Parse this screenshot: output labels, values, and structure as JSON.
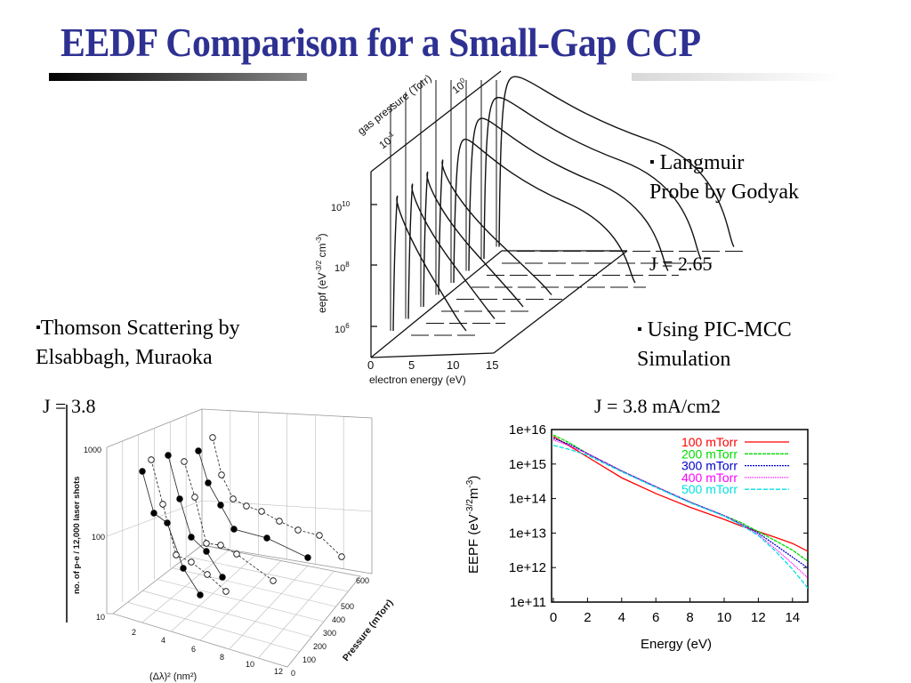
{
  "slide": {
    "title": "EEDF Comparison for a Small-Gap CCP",
    "langmuir": {
      "bullet": "▪",
      "line1": "Langmuir",
      "line2": "Probe by Godyak",
      "j": "J = 2.65"
    },
    "pic": {
      "bullet": "▪",
      "line1": "Using PIC-MCC",
      "line2": "Simulation",
      "j": "J = 3.8 mA/cm2"
    },
    "thomson": {
      "bullet": "▪",
      "line1": "Thomson Scattering by",
      "line2": "Elsabbagh, Muraoka",
      "j": "J = 3.8"
    },
    "colors": {
      "title": "#2e3192"
    }
  },
  "chart_data": [
    {
      "type": "line",
      "xlabel": "electron energy (eV)",
      "ylabel": "eepf (eV-3/2 cm-3)",
      "zlabel": "gas pressure (Torr)",
      "xticks": [
        "0",
        "5",
        "10",
        "15"
      ],
      "yticks": [
        "10^10",
        "10^8",
        "10^6"
      ],
      "zticks": [
        "10^-1",
        "10^0"
      ],
      "ylabel_parts": {
        "base": "eepf (eV",
        "exp1": "-3/2",
        "mid": " cm",
        "exp2": "-3",
        "end": ")"
      },
      "ytick_parts": [
        {
          "base": "10",
          "exp": "10"
        },
        {
          "base": "10",
          "exp": "8"
        },
        {
          "base": "10",
          "exp": "6"
        }
      ],
      "ztick_parts": [
        {
          "base": "10",
          "exp": "-1"
        },
        {
          "base": "10",
          "exp": "0"
        }
      ]
    },
    {
      "type": "scatter",
      "xlabel": "(Δλ)² (nm²)",
      "ylabel": "no. of p-e / 12,000 laser shots",
      "zlabel": "Pressure (mTorr)",
      "xticks": [
        "2",
        "4",
        "6",
        "8",
        "10",
        "12"
      ],
      "yticks": [
        "1000",
        "100",
        "10"
      ],
      "zticks": [
        "0",
        "100",
        "200",
        "300",
        "400",
        "500",
        "600"
      ],
      "yscale": "log"
    },
    {
      "type": "line",
      "xlabel": "Energy (eV)",
      "ylabel": "EEPF (eV-3/2m-3)",
      "ylabel_parts": {
        "base": "EEPF (eV",
        "exp1": "-3/2",
        "mid": "m",
        "exp2": "-3",
        "end": ")"
      },
      "xlim": [
        0,
        15
      ],
      "ylim": [
        100000000000.0,
        1e+16
      ],
      "yscale": "log",
      "xticks": [
        "0",
        "2",
        "4",
        "6",
        "8",
        "10",
        "12",
        "14"
      ],
      "yticks": [
        "1e+16",
        "1e+15",
        "1e+14",
        "1e+13",
        "1e+12",
        "1e+11"
      ],
      "legend": "top-right",
      "x": [
        0,
        1,
        2,
        4,
        6,
        8,
        10,
        11,
        12,
        13,
        14,
        15
      ],
      "series": [
        {
          "name": "100 mTorr",
          "color": "#ff0000",
          "dash": "solid",
          "values": [
            6300000000000000.0,
            3200000000000000.0,
            1600000000000000.0,
            400000000000000.0,
            140000000000000.0,
            56000000000000.0,
            25000000000000.0,
            16000000000000.0,
            11000000000000.0,
            7500000000000.0,
            5000000000000.0,
            2800000000000.0
          ]
        },
        {
          "name": "200 mTorr",
          "color": "#00dd00",
          "dash": "4,1",
          "values": [
            7000000000000000.0,
            4000000000000000.0,
            2000000000000000.0,
            630000000000000.0,
            220000000000000.0,
            79000000000000.0,
            32000000000000.0,
            20000000000000.0,
            11000000000000.0,
            6000000000000.0,
            3200000000000.0,
            1400000000000.0
          ]
        },
        {
          "name": "300 mTorr",
          "color": "#0000cc",
          "dash": "2,1",
          "values": [
            5600000000000000.0,
            3600000000000000.0,
            2000000000000000.0,
            630000000000000.0,
            220000000000000.0,
            79000000000000.0,
            32000000000000.0,
            18000000000000.0,
            10000000000000.0,
            4500000000000.0,
            2000000000000.0,
            900000000000.0
          ]
        },
        {
          "name": "400 mTorr",
          "color": "#ff00ff",
          "dash": "1,1",
          "values": [
            5000000000000000.0,
            3300000000000000.0,
            2000000000000000.0,
            630000000000000.0,
            220000000000000.0,
            79000000000000.0,
            32000000000000.0,
            18000000000000.0,
            9000000000000.0,
            3500000000000.0,
            1300000000000.0,
            450000000000.0
          ]
        },
        {
          "name": "500 mTorr",
          "color": "#00e0e0",
          "dash": "5,2",
          "values": [
            3500000000000000.0,
            2600000000000000.0,
            1800000000000000.0,
            600000000000000.0,
            210000000000000.0,
            76000000000000.0,
            31000000000000.0,
            17000000000000.0,
            8500000000000.0,
            3000000000000.0,
            900000000000.0,
            220000000000.0
          ]
        }
      ]
    }
  ]
}
